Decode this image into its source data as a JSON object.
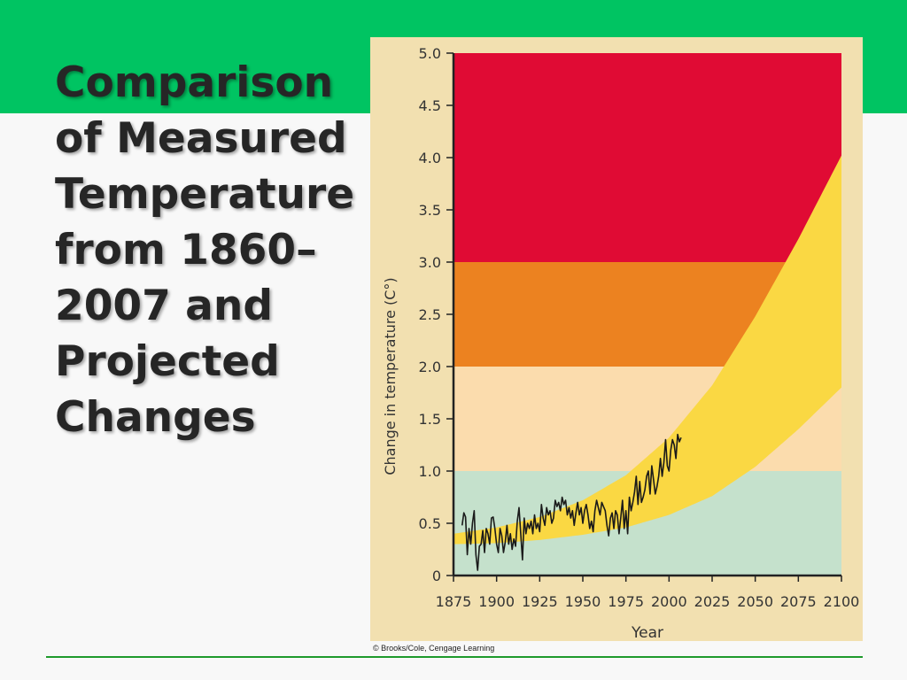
{
  "slide": {
    "title": "Comparison of Measured Temperature from 1860–2007 and Projected Changes",
    "credit": "© Brooks/Cole, Cengage Learning"
  },
  "colors": {
    "top_band": "#00c462",
    "footer_rule": "#1e9a2c",
    "panel_bg": "#f2e0b0",
    "zone_teal": "#c5e1cc",
    "zone_peach": "#fbdcad",
    "zone_orange": "#ec8220",
    "zone_red": "#e00b34",
    "projection_band": "#fad843",
    "measured_line": "#1a1a1a"
  },
  "chart_data": {
    "type": "line",
    "xlabel": "Year",
    "ylabel": "Change in temperature (C°)",
    "xlim": [
      1875,
      2100
    ],
    "ylim": [
      0,
      5.0
    ],
    "x_ticks": [
      "1875",
      "1900",
      "1925",
      "1950",
      "1975",
      "2000",
      "2025",
      "2050",
      "2075",
      "2100"
    ],
    "y_ticks": [
      "0",
      "0.5",
      "1.0",
      "1.5",
      "2.0",
      "2.5",
      "3.0",
      "3.5",
      "4.0",
      "4.5",
      "5.0"
    ],
    "zones": [
      {
        "from": 0,
        "to": 1.0,
        "color": "#c5e1cc"
      },
      {
        "from": 1.0,
        "to": 2.0,
        "color": "#fbdcad"
      },
      {
        "from": 2.0,
        "to": 3.0,
        "color": "#ec8220"
      },
      {
        "from": 3.0,
        "to": 5.0,
        "color": "#e00b34"
      }
    ],
    "projection_band": {
      "x": [
        1875,
        1900,
        1925,
        1950,
        1975,
        2000,
        2025,
        2050,
        2075,
        2100
      ],
      "upper": [
        0.4,
        0.46,
        0.56,
        0.72,
        0.96,
        1.32,
        1.82,
        2.48,
        3.22,
        4.02
      ],
      "lower": [
        0.3,
        0.31,
        0.34,
        0.39,
        0.46,
        0.58,
        0.76,
        1.04,
        1.4,
        1.8
      ]
    },
    "series": [
      {
        "values": [
          [
            1880,
            0.48
          ],
          [
            1881,
            0.6
          ],
          [
            1882,
            0.56
          ],
          [
            1883,
            0.2
          ],
          [
            1884,
            0.45
          ],
          [
            1885,
            0.3
          ],
          [
            1886,
            0.5
          ],
          [
            1887,
            0.62
          ],
          [
            1888,
            0.2
          ],
          [
            1889,
            0.05
          ],
          [
            1890,
            0.28
          ],
          [
            1891,
            0.3
          ],
          [
            1892,
            0.43
          ],
          [
            1893,
            0.22
          ],
          [
            1894,
            0.45
          ],
          [
            1895,
            0.4
          ],
          [
            1896,
            0.3
          ],
          [
            1897,
            0.55
          ],
          [
            1898,
            0.56
          ],
          [
            1899,
            0.45
          ],
          [
            1900,
            0.3
          ],
          [
            1901,
            0.22
          ],
          [
            1902,
            0.45
          ],
          [
            1903,
            0.38
          ],
          [
            1904,
            0.22
          ],
          [
            1905,
            0.32
          ],
          [
            1906,
            0.48
          ],
          [
            1907,
            0.3
          ],
          [
            1908,
            0.4
          ],
          [
            1909,
            0.25
          ],
          [
            1910,
            0.35
          ],
          [
            1911,
            0.28
          ],
          [
            1912,
            0.52
          ],
          [
            1913,
            0.65
          ],
          [
            1914,
            0.4
          ],
          [
            1915,
            0.15
          ],
          [
            1916,
            0.55
          ],
          [
            1917,
            0.4
          ],
          [
            1918,
            0.5
          ],
          [
            1919,
            0.45
          ],
          [
            1920,
            0.52
          ],
          [
            1921,
            0.4
          ],
          [
            1922,
            0.58
          ],
          [
            1923,
            0.45
          ],
          [
            1924,
            0.5
          ],
          [
            1925,
            0.42
          ],
          [
            1926,
            0.68
          ],
          [
            1927,
            0.55
          ],
          [
            1928,
            0.48
          ],
          [
            1929,
            0.65
          ],
          [
            1930,
            0.58
          ],
          [
            1931,
            0.62
          ],
          [
            1932,
            0.5
          ],
          [
            1933,
            0.55
          ],
          [
            1934,
            0.72
          ],
          [
            1935,
            0.66
          ],
          [
            1936,
            0.7
          ],
          [
            1937,
            0.62
          ],
          [
            1938,
            0.75
          ],
          [
            1939,
            0.68
          ],
          [
            1940,
            0.72
          ],
          [
            1941,
            0.58
          ],
          [
            1942,
            0.65
          ],
          [
            1943,
            0.55
          ],
          [
            1944,
            0.62
          ],
          [
            1945,
            0.48
          ],
          [
            1946,
            0.6
          ],
          [
            1947,
            0.7
          ],
          [
            1948,
            0.58
          ],
          [
            1949,
            0.65
          ],
          [
            1950,
            0.5
          ],
          [
            1951,
            0.62
          ],
          [
            1952,
            0.68
          ],
          [
            1953,
            0.58
          ],
          [
            1954,
            0.45
          ],
          [
            1955,
            0.52
          ],
          [
            1956,
            0.42
          ],
          [
            1957,
            0.62
          ],
          [
            1958,
            0.72
          ],
          [
            1959,
            0.65
          ],
          [
            1960,
            0.58
          ],
          [
            1961,
            0.7
          ],
          [
            1962,
            0.66
          ],
          [
            1963,
            0.62
          ],
          [
            1964,
            0.48
          ],
          [
            1965,
            0.38
          ],
          [
            1966,
            0.55
          ],
          [
            1967,
            0.6
          ],
          [
            1968,
            0.45
          ],
          [
            1969,
            0.62
          ],
          [
            1970,
            0.58
          ],
          [
            1971,
            0.4
          ],
          [
            1972,
            0.55
          ],
          [
            1973,
            0.72
          ],
          [
            1974,
            0.45
          ],
          [
            1975,
            0.62
          ],
          [
            1976,
            0.4
          ],
          [
            1977,
            0.75
          ],
          [
            1978,
            0.62
          ],
          [
            1979,
            0.7
          ],
          [
            1980,
            0.8
          ],
          [
            1981,
            0.95
          ],
          [
            1982,
            0.68
          ],
          [
            1983,
            0.9
          ],
          [
            1984,
            0.7
          ],
          [
            1985,
            0.75
          ],
          [
            1986,
            0.82
          ],
          [
            1987,
            0.95
          ],
          [
            1988,
            1.0
          ],
          [
            1989,
            0.78
          ],
          [
            1990,
            1.05
          ],
          [
            1991,
            0.92
          ],
          [
            1992,
            0.78
          ],
          [
            1993,
            0.85
          ],
          [
            1994,
            0.95
          ],
          [
            1995,
            1.12
          ],
          [
            1996,
            0.95
          ],
          [
            1997,
            1.08
          ],
          [
            1998,
            1.3
          ],
          [
            1999,
            1.05
          ],
          [
            2000,
            1.0
          ],
          [
            2001,
            1.2
          ],
          [
            2002,
            1.3
          ],
          [
            2003,
            1.25
          ],
          [
            2004,
            1.12
          ],
          [
            2005,
            1.35
          ],
          [
            2006,
            1.28
          ],
          [
            2007,
            1.32
          ]
        ]
      }
    ]
  }
}
